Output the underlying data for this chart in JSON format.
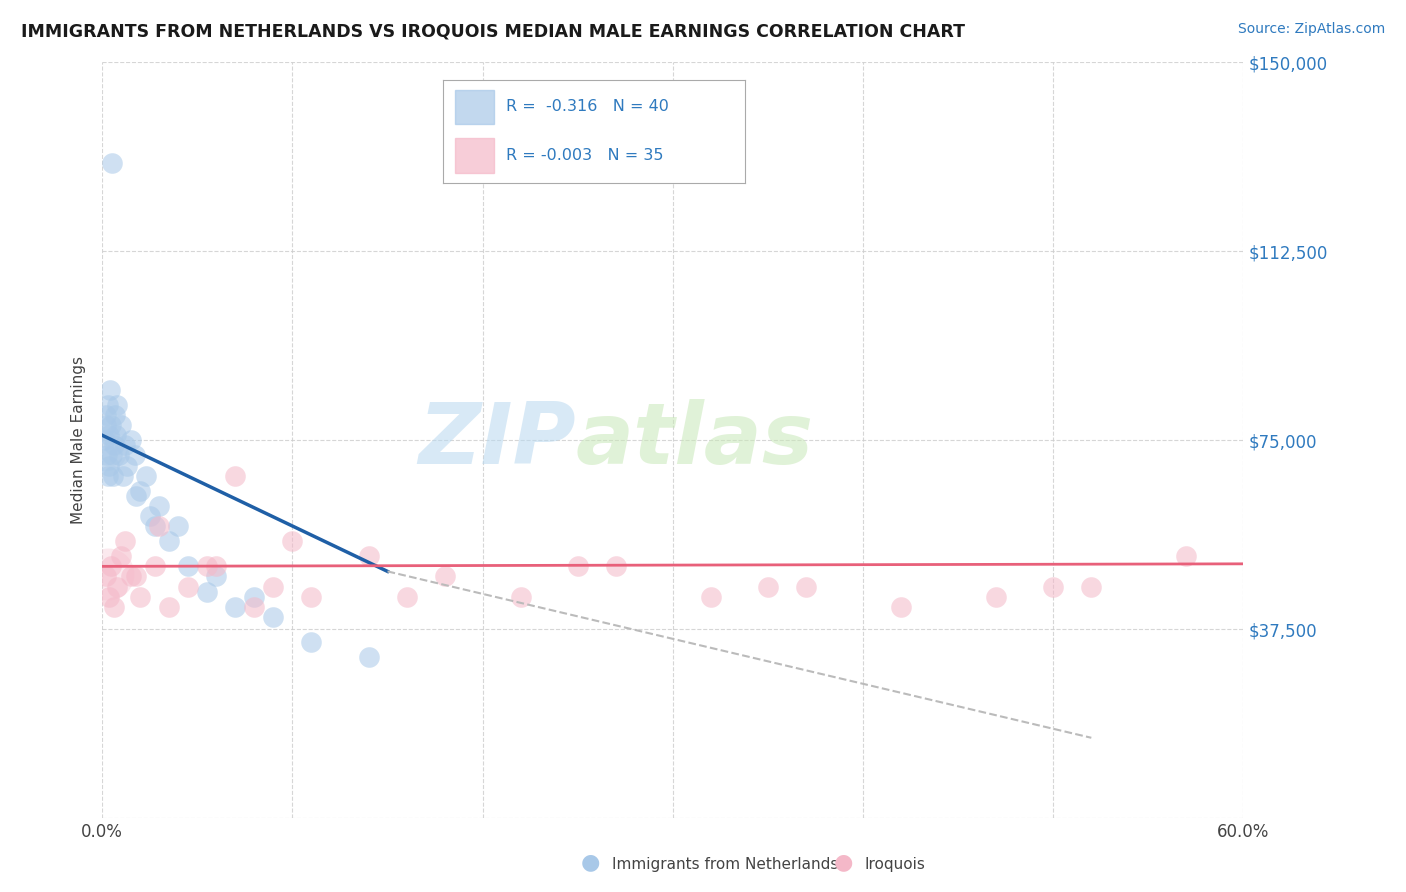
{
  "title": "IMMIGRANTS FROM NETHERLANDS VS IROQUOIS MEDIAN MALE EARNINGS CORRELATION CHART",
  "source": "Source: ZipAtlas.com",
  "ylabel": "Median Male Earnings",
  "yticks": [
    0,
    37500,
    75000,
    112500,
    150000
  ],
  "ytick_labels": [
    "",
    "$37,500",
    "$75,000",
    "$112,500",
    "$150,000"
  ],
  "xmin": 0.0,
  "xmax": 60.0,
  "ymin": 0,
  "ymax": 150000,
  "color_blue": "#a8c8e8",
  "color_blue_fill": "#a8c8e8",
  "color_blue_line": "#1f5fa6",
  "color_pink": "#f4b8c8",
  "color_pink_fill": "#f4b8c8",
  "color_pink_line": "#e8607a",
  "color_dashed": "#bbbbbb",
  "watermark_zip": "ZIP",
  "watermark_atlas": "atlas",
  "blue_x": [
    0.15,
    0.18,
    0.2,
    0.25,
    0.28,
    0.3,
    0.35,
    0.38,
    0.4,
    0.45,
    0.5,
    0.55,
    0.6,
    0.65,
    0.7,
    0.8,
    0.9,
    1.0,
    1.1,
    1.2,
    1.3,
    1.5,
    1.7,
    2.0,
    2.3,
    2.8,
    3.5,
    4.5,
    5.5,
    7.0,
    9.0,
    11.0,
    14.0,
    3.0,
    4.0,
    6.0,
    8.0,
    1.8,
    2.5,
    0.5
  ],
  "blue_y": [
    75000,
    80000,
    78000,
    72000,
    68000,
    82000,
    76000,
    70000,
    85000,
    78000,
    72000,
    68000,
    74000,
    80000,
    76000,
    82000,
    72000,
    78000,
    68000,
    74000,
    70000,
    75000,
    72000,
    65000,
    68000,
    58000,
    55000,
    50000,
    45000,
    42000,
    40000,
    35000,
    32000,
    62000,
    58000,
    48000,
    44000,
    64000,
    60000,
    130000
  ],
  "pink_x": [
    0.2,
    0.35,
    0.45,
    0.6,
    0.8,
    1.0,
    1.5,
    2.0,
    2.8,
    3.5,
    4.5,
    5.5,
    7.0,
    9.0,
    11.0,
    14.0,
    18.0,
    22.0,
    27.0,
    32.0,
    37.0,
    42.0,
    47.0,
    52.0,
    57.0,
    1.2,
    1.8,
    3.0,
    6.0,
    10.0,
    8.0,
    16.0,
    25.0,
    35.0,
    50.0
  ],
  "pink_y": [
    48000,
    44000,
    50000,
    42000,
    46000,
    52000,
    48000,
    44000,
    50000,
    42000,
    46000,
    50000,
    68000,
    46000,
    44000,
    52000,
    48000,
    44000,
    50000,
    44000,
    46000,
    42000,
    44000,
    46000,
    52000,
    55000,
    48000,
    58000,
    50000,
    55000,
    42000,
    44000,
    50000,
    46000,
    46000
  ],
  "blue_trend_x0": 0.0,
  "blue_trend_y0": 76000,
  "blue_trend_x1": 15.0,
  "blue_trend_y1": 49000,
  "blue_dashed_x0": 15.0,
  "blue_dashed_y0": 49000,
  "blue_dashed_x1": 52.0,
  "blue_dashed_y1": 16000,
  "pink_trend_x0": 0.0,
  "pink_trend_y0": 50000,
  "pink_trend_x1": 60.0,
  "pink_trend_y1": 50500,
  "legend_blue_label": "R =  -0.316   N = 40",
  "legend_pink_label": "R = -0.003   N = 35",
  "bottom_label_blue": "Immigrants from Netherlands",
  "bottom_label_pink": "Iroquois"
}
